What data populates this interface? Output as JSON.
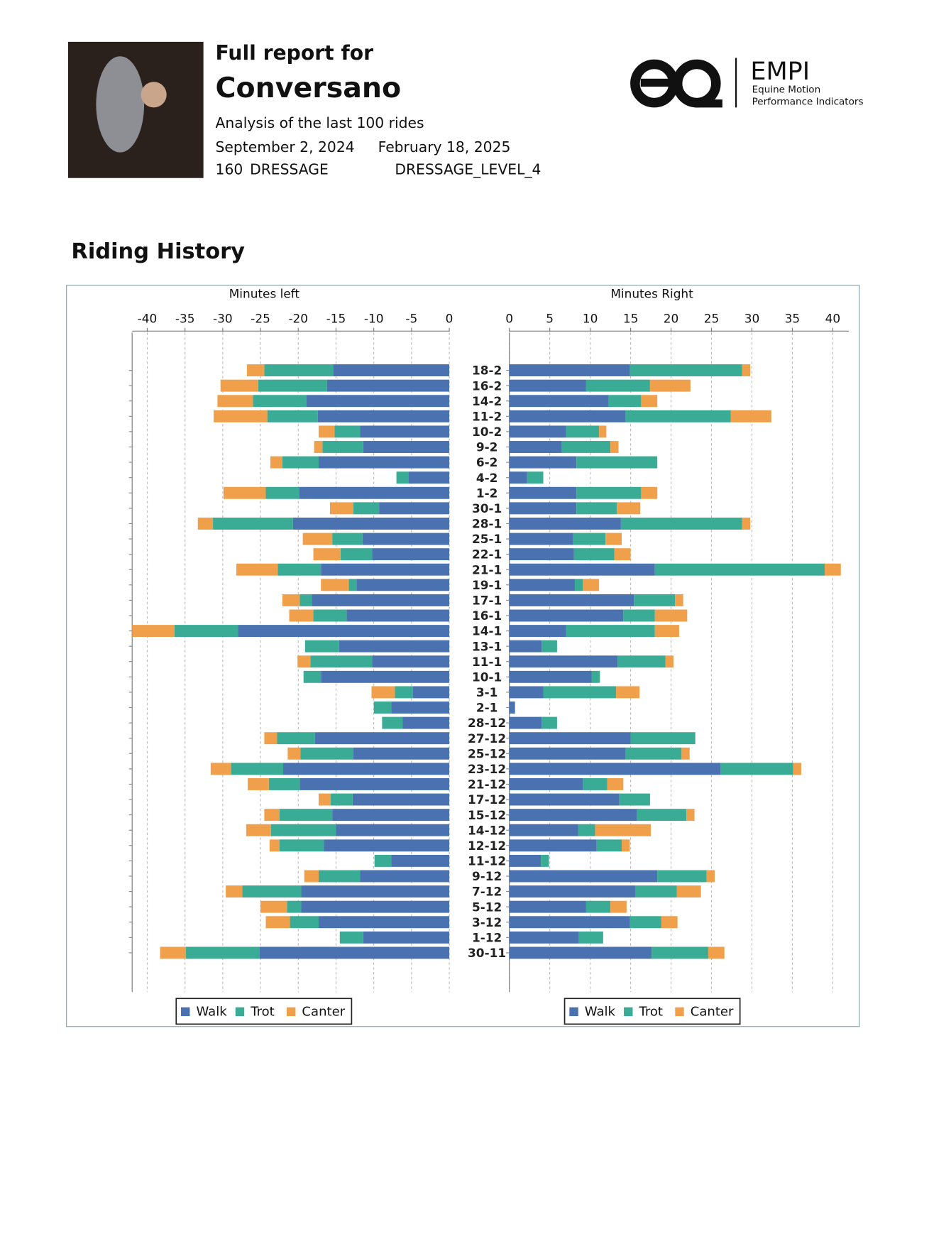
{
  "header": {
    "line1": "Full report for",
    "horse": "Conversano",
    "analysis": "Analysis of the last 100 rides",
    "date_from": "September 2, 2024",
    "date_to": "February 18, 2025",
    "number": "160",
    "discipline": "DRESSAGE",
    "level": "DRESSAGE_LEVEL_4"
  },
  "logo": {
    "name": "EMPI",
    "line1": "Equine Motion",
    "line2": "Performance Indicators"
  },
  "section_title": "Riding History",
  "chart_data": [
    {
      "type": "bar",
      "orientation": "horizontal",
      "stacked": true,
      "x_label": "Minutes left",
      "categories": [
        "18-2",
        "16-2",
        "14-2",
        "11-2",
        "10-2",
        "9-2",
        "6-2",
        "4-2",
        "1-2",
        "30-1",
        "28-1",
        "25-1",
        "22-1",
        "21-1",
        "19-1",
        "17-1",
        "16-1",
        "14-1",
        "13-1",
        "11-1",
        "10-1",
        "3-1",
        "2-1",
        "28-12",
        "27-12",
        "25-12",
        "23-12",
        "21-12",
        "17-12",
        "15-12",
        "14-12",
        "12-12",
        "11-12",
        "9-12",
        "7-12",
        "5-12",
        "3-12",
        "1-12",
        "30-11"
      ],
      "xlim": [
        -42,
        0
      ],
      "xticks": [
        -40,
        -35,
        -30,
        -25,
        -20,
        -15,
        -10,
        -5,
        0
      ],
      "grid": true,
      "legend": "bottom",
      "series": [
        {
          "name": "Walk",
          "color": "#4a72b0",
          "values": [
            -15.4,
            -16.2,
            -18.9,
            -17.4,
            -11.8,
            -11.4,
            -17.3,
            -5.4,
            -19.9,
            -9.3,
            -20.7,
            -11.5,
            -10.2,
            -17.0,
            -12.3,
            -18.2,
            -13.6,
            -28.0,
            -14.6,
            -10.2,
            -17.0,
            -4.8,
            -7.7,
            -6.2,
            -17.8,
            -12.7,
            -22.0,
            -19.8,
            -12.8,
            -15.5,
            -15.0,
            -16.6,
            -7.7,
            -11.8,
            -19.6,
            -19.6,
            -17.3,
            -11.4,
            -25.1
          ]
        },
        {
          "name": "Trot",
          "color": "#3aab94",
          "values": [
            -9.1,
            -9.1,
            -7.1,
            -6.7,
            -3.4,
            -5.4,
            -4.8,
            -1.6,
            -4.4,
            -3.4,
            -10.6,
            -4.0,
            -4.2,
            -5.7,
            -1.0,
            -1.6,
            -4.4,
            -8.4,
            -4.5,
            -8.2,
            -2.3,
            -2.4,
            -2.3,
            -2.7,
            -5.0,
            -7.0,
            -6.9,
            -4.1,
            -2.9,
            -7.0,
            -8.6,
            -5.9,
            -2.2,
            -5.5,
            -7.8,
            -1.9,
            -3.8,
            -3.1,
            -9.8
          ]
        },
        {
          "name": "Canter",
          "color": "#f0a04b",
          "values": [
            -2.3,
            -5.0,
            -4.7,
            -7.1,
            -2.1,
            -1.1,
            -1.6,
            0,
            -5.6,
            -3.1,
            -2.0,
            -3.9,
            -3.6,
            -5.5,
            -3.7,
            -2.3,
            -3.2,
            -5.6,
            0,
            -1.7,
            0,
            -3.1,
            0,
            0,
            -1.7,
            -1.7,
            -2.7,
            -2.8,
            -1.6,
            -2.0,
            -3.3,
            -1.3,
            0,
            -1.9,
            -2.2,
            -3.5,
            -3.2,
            0,
            -3.4
          ]
        }
      ]
    },
    {
      "type": "bar",
      "orientation": "horizontal",
      "stacked": true,
      "x_label": "Minutes Right",
      "xlim": [
        0,
        42
      ],
      "xticks": [
        0,
        5,
        10,
        15,
        20,
        25,
        30,
        35,
        40
      ],
      "grid": true,
      "legend": "bottom",
      "series": [
        {
          "name": "Walk",
          "color": "#4a72b0",
          "values": [
            14.9,
            9.5,
            12.3,
            14.4,
            7.0,
            6.5,
            8.3,
            2.2,
            8.3,
            8.3,
            13.8,
            7.9,
            8.0,
            18.0,
            8.1,
            15.4,
            14.1,
            7.0,
            4.0,
            13.4,
            10.2,
            4.2,
            0.7,
            4.0,
            15.0,
            14.4,
            26.1,
            9.1,
            13.6,
            15.8,
            8.5,
            10.8,
            3.9,
            18.3,
            15.6,
            9.5,
            14.9,
            8.6,
            17.6
          ]
        },
        {
          "name": "Trot",
          "color": "#3aab94",
          "values": [
            13.9,
            7.9,
            4.0,
            13.0,
            4.1,
            6.0,
            10.0,
            2.0,
            8.0,
            5.0,
            15.0,
            4.0,
            5.0,
            21.0,
            1.0,
            5.1,
            3.9,
            11.0,
            1.9,
            5.9,
            1.0,
            9.0,
            0,
            1.9,
            8.0,
            6.9,
            9.0,
            3.0,
            3.8,
            6.1,
            2.1,
            3.1,
            1.0,
            6.1,
            5.1,
            3.0,
            3.9,
            3.0,
            7.0
          ]
        },
        {
          "name": "Canter",
          "color": "#f0a04b",
          "values": [
            1.0,
            5.0,
            2.0,
            5.0,
            0.9,
            1.0,
            0,
            0,
            2.0,
            2.9,
            1.0,
            2.0,
            2.0,
            2.0,
            2.0,
            1.0,
            4.0,
            3.0,
            0,
            1.0,
            0,
            2.9,
            0,
            0,
            0,
            1.0,
            1.0,
            2.0,
            0,
            1.0,
            6.9,
            1.0,
            0,
            1.0,
            3.0,
            2.0,
            2.0,
            0,
            2.0
          ]
        }
      ]
    }
  ]
}
